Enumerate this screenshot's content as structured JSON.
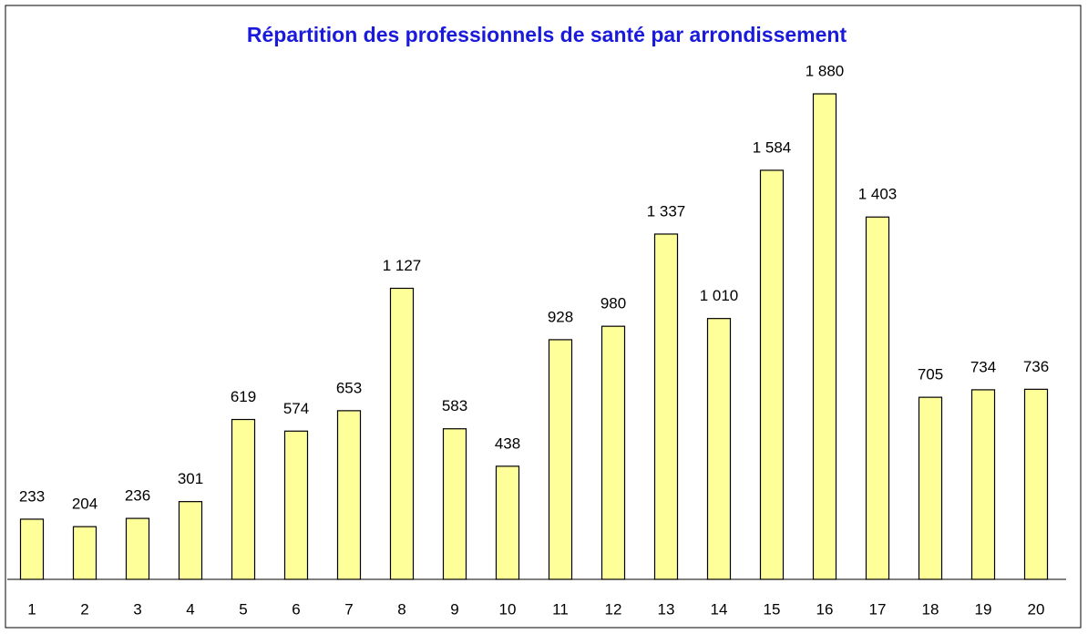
{
  "chart_data": {
    "type": "bar",
    "title": "Répartition des professionnels de santé par arrondissement",
    "categories": [
      "1",
      "2",
      "3",
      "4",
      "5",
      "6",
      "7",
      "8",
      "9",
      "10",
      "11",
      "12",
      "13",
      "14",
      "15",
      "16",
      "17",
      "18",
      "19",
      "20"
    ],
    "values": [
      233,
      204,
      236,
      301,
      619,
      574,
      653,
      1127,
      583,
      438,
      928,
      980,
      1337,
      1010,
      1584,
      1880,
      1403,
      705,
      734,
      736
    ],
    "value_labels": [
      "233",
      "204",
      "236",
      "301",
      "619",
      "574",
      "653",
      "1 127",
      "583",
      "438",
      "928",
      "980",
      "1 337",
      "1 010",
      "1 584",
      "1 880",
      "1 403",
      "705",
      "734",
      "736"
    ],
    "color": "#ffff99",
    "ylim": [
      0,
      2000
    ]
  }
}
